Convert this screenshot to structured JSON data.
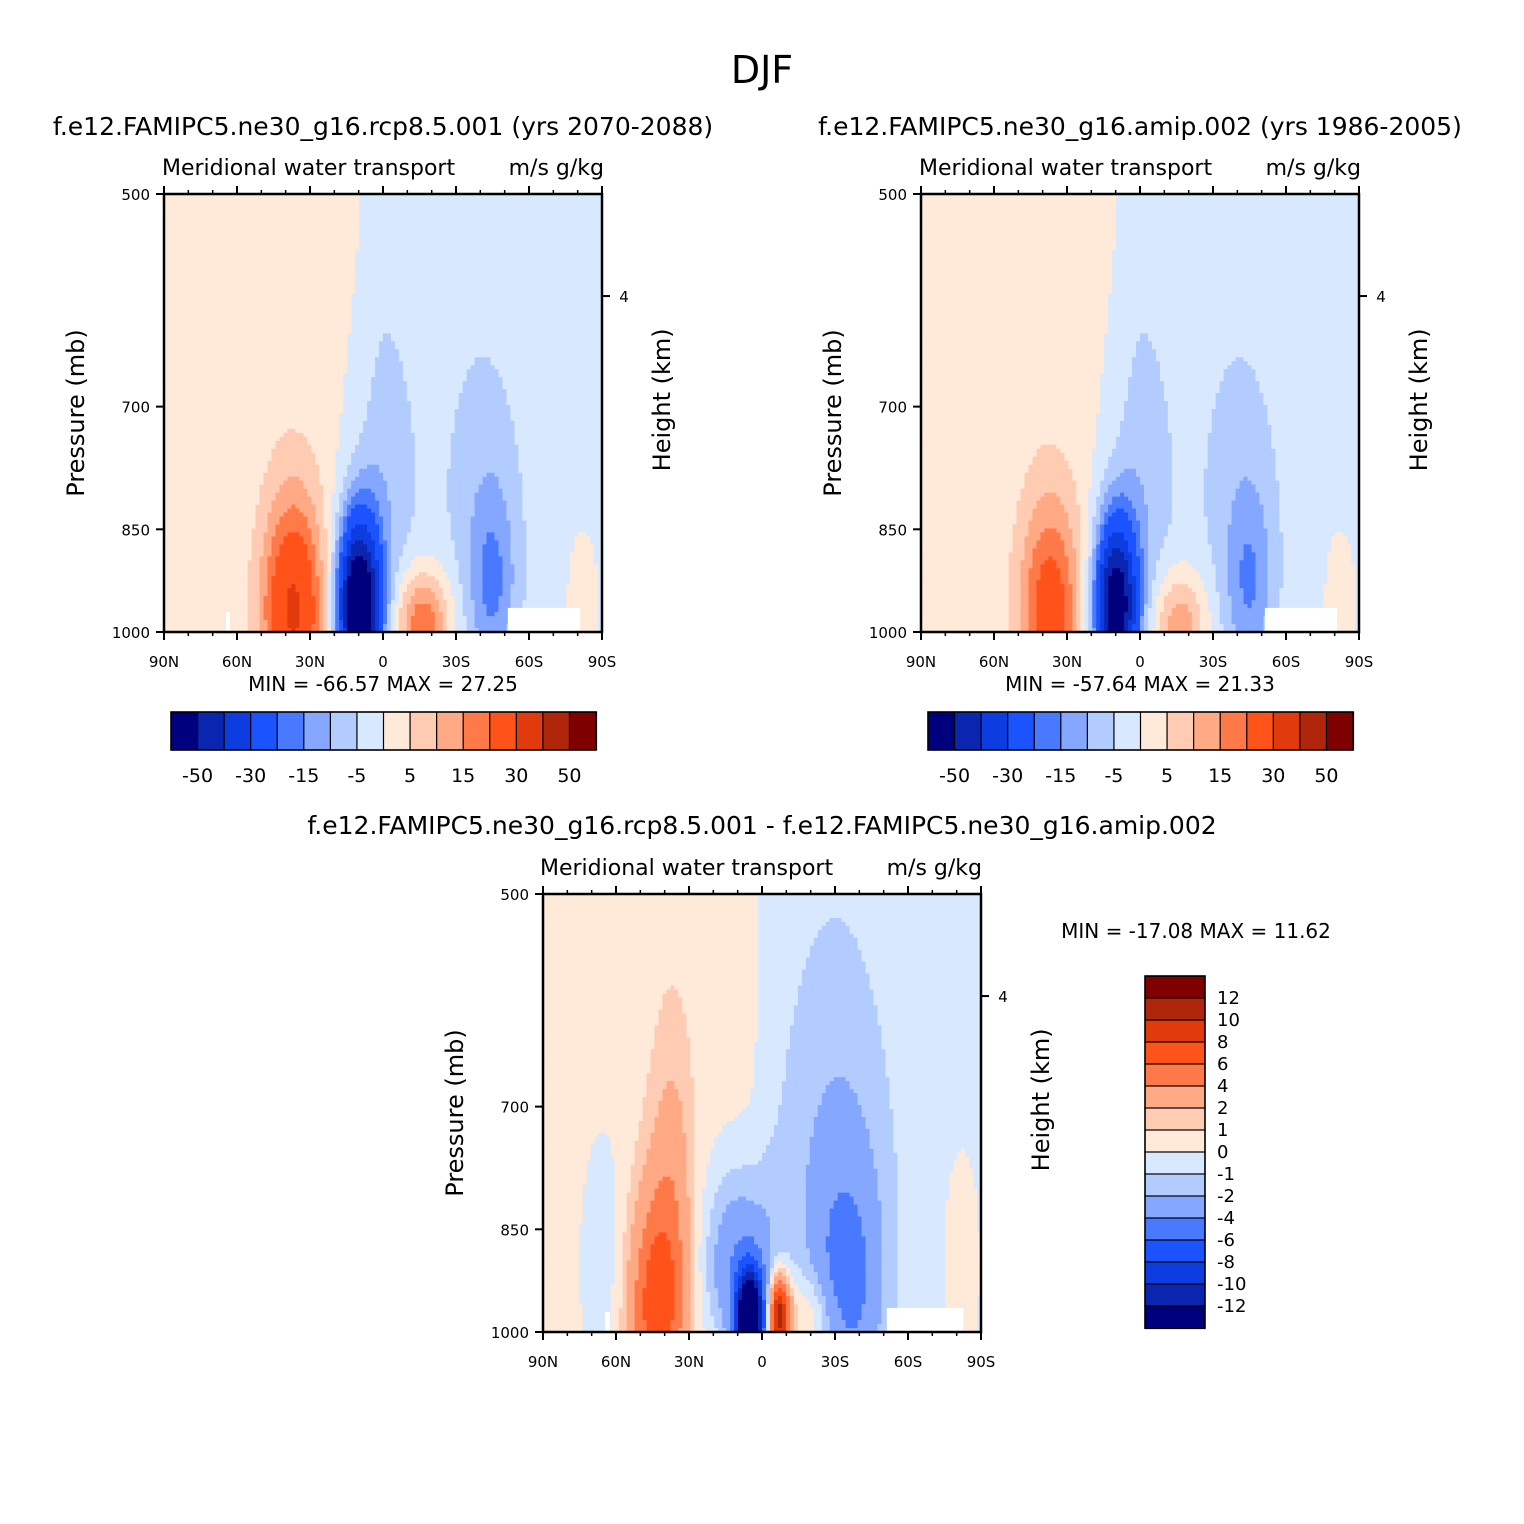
{
  "figure": {
    "title": "DJF",
    "shared": {
      "var_label": "Meridional water transport",
      "units": "m/s g/kg",
      "left_axis_title": "Pressure (mb)",
      "right_axis_title": "Height (km)",
      "y_ticks": [
        "500",
        "700",
        "850",
        "1000"
      ],
      "right_tick": "4",
      "x_ticks": [
        "90N",
        "60N",
        "30N",
        "0",
        "30S",
        "60S",
        "90S"
      ]
    },
    "panel_a": {
      "title": "f.e12.FAMIPC5.ne30_g16.rcp8.5.001 (yrs 2070-2088)",
      "stats": "MIN = -66.57 MAX = 27.25",
      "colorbar_labels": [
        "-50",
        "-30",
        "-15",
        "-5",
        "5",
        "15",
        "30",
        "50"
      ]
    },
    "panel_b": {
      "title": "f.e12.FAMIPC5.ne30_g16.amip.002 (yrs 1986-2005)",
      "stats": "MIN = -57.64 MAX = 21.33",
      "colorbar_labels": [
        "-50",
        "-30",
        "-15",
        "-5",
        "5",
        "15",
        "30",
        "50"
      ]
    },
    "panel_c": {
      "title": "f.e12.FAMIPC5.ne30_g16.rcp8.5.001 - f.e12.FAMIPC5.ne30_g16.amip.002",
      "stats": "MIN = -17.08 MAX = 11.62",
      "colorbar_labels": [
        "12",
        "10",
        "8",
        "6",
        "4",
        "2",
        "1",
        "0",
        "-1",
        "-2",
        "-4",
        "-6",
        "-8",
        "-10",
        "-12"
      ]
    }
  },
  "colors": {
    "abs_scale": [
      "#00007f",
      "#0a26b0",
      "#0d3ce0",
      "#1a53ff",
      "#4879ff",
      "#85a7ff",
      "#b3ccff",
      "#d8e9ff",
      "#ffe9d8",
      "#ffccb3",
      "#ffa985",
      "#ff7a48",
      "#ff531a",
      "#e03a0d",
      "#b0260a",
      "#7f0000"
    ],
    "diff_scale": [
      "#7f0000",
      "#b0260a",
      "#e03a0d",
      "#ff531a",
      "#ff7a48",
      "#ffa985",
      "#ffccb3",
      "#ffe9d8",
      "#d8e9ff",
      "#b3ccff",
      "#85a7ff",
      "#4879ff",
      "#1a53ff",
      "#0d3ce0",
      "#0a26b0",
      "#00007f"
    ]
  },
  "chart_data": [
    {
      "type": "heatmap",
      "title": "f.e12.FAMIPC5.ne30_g16.rcp8.5.001 (yrs 2070-2088)",
      "subtitle": "Meridional water transport",
      "units": "m/s g/kg",
      "xlabel": "",
      "ylabel": "Pressure (mb)",
      "y2label": "Height (km)",
      "x_range": [
        "90N",
        "90S"
      ],
      "y_range": [
        500,
        1000
      ],
      "y_scale": "log",
      "x_tick_labels": [
        "90N",
        "60N",
        "30N",
        "0",
        "30S",
        "60S",
        "90S"
      ],
      "y_tick_labels": [
        500,
        700,
        850,
        1000
      ],
      "contour_levels": [
        -60,
        -50,
        -40,
        -30,
        -20,
        -15,
        -10,
        -5,
        0,
        5,
        10,
        15,
        20,
        30,
        40,
        50,
        60
      ],
      "min": -66.57,
      "max": 27.25,
      "features": [
        {
          "name": "northern positive lobe",
          "lat_center": "35N",
          "value_max": 27.25
        },
        {
          "name": "equatorial negative core",
          "lat_center": "10N",
          "value_min": -66.57
        },
        {
          "name": "subtropical southern positive lobe",
          "lat_center": "15S",
          "value_max": 20
        },
        {
          "name": "southern negative lobe",
          "lat_center": "45S",
          "value_min": -15
        }
      ]
    },
    {
      "type": "heatmap",
      "title": "f.e12.FAMIPC5.ne30_g16.amip.002 (yrs 1986-2005)",
      "subtitle": "Meridional water transport",
      "units": "m/s g/kg",
      "xlabel": "",
      "ylabel": "Pressure (mb)",
      "y2label": "Height (km)",
      "x_range": [
        "90N",
        "90S"
      ],
      "y_range": [
        500,
        1000
      ],
      "y_scale": "log",
      "x_tick_labels": [
        "90N",
        "60N",
        "30N",
        "0",
        "30S",
        "60S",
        "90S"
      ],
      "y_tick_labels": [
        500,
        700,
        850,
        1000
      ],
      "contour_levels": [
        -60,
        -50,
        -40,
        -30,
        -20,
        -15,
        -10,
        -5,
        0,
        5,
        10,
        15,
        20,
        30,
        40,
        50,
        60
      ],
      "min": -57.64,
      "max": 21.33,
      "features": [
        {
          "name": "northern positive lobe",
          "lat_center": "35N",
          "value_max": 21.33
        },
        {
          "name": "equatorial negative core",
          "lat_center": "10N",
          "value_min": -57.64
        },
        {
          "name": "subtropical southern positive lobe",
          "lat_center": "18S",
          "value_max": 15
        },
        {
          "name": "southern negative lobe",
          "lat_center": "45S",
          "value_min": -15
        }
      ]
    },
    {
      "type": "heatmap",
      "title": "f.e12.FAMIPC5.ne30_g16.rcp8.5.001 - f.e12.FAMIPC5.ne30_g16.amip.002",
      "subtitle": "Meridional water transport",
      "units": "m/s g/kg",
      "xlabel": "",
      "ylabel": "Pressure (mb)",
      "y2label": "Height (km)",
      "x_range": [
        "90N",
        "90S"
      ],
      "y_range": [
        500,
        1000
      ],
      "y_scale": "log",
      "x_tick_labels": [
        "90N",
        "60N",
        "30N",
        "0",
        "30S",
        "60S",
        "90S"
      ],
      "y_tick_labels": [
        500,
        700,
        850,
        1000
      ],
      "contour_levels": [
        -12,
        -10,
        -8,
        -6,
        -4,
        -2,
        -1,
        0,
        1,
        2,
        4,
        6,
        8,
        10,
        12
      ],
      "min": -17.08,
      "max": 11.62,
      "features": [
        {
          "name": "northern positive lobe",
          "lat_center": "42N",
          "value_max": 8
        },
        {
          "name": "equatorial negative core",
          "lat_center": "5N",
          "value_min": -17.08
        },
        {
          "name": "just-south-of-equator positive lobe",
          "lat_center": "8S",
          "value_max": 11.62
        },
        {
          "name": "southern negative band",
          "lat_center": "35S",
          "value_min": -4
        }
      ]
    }
  ]
}
